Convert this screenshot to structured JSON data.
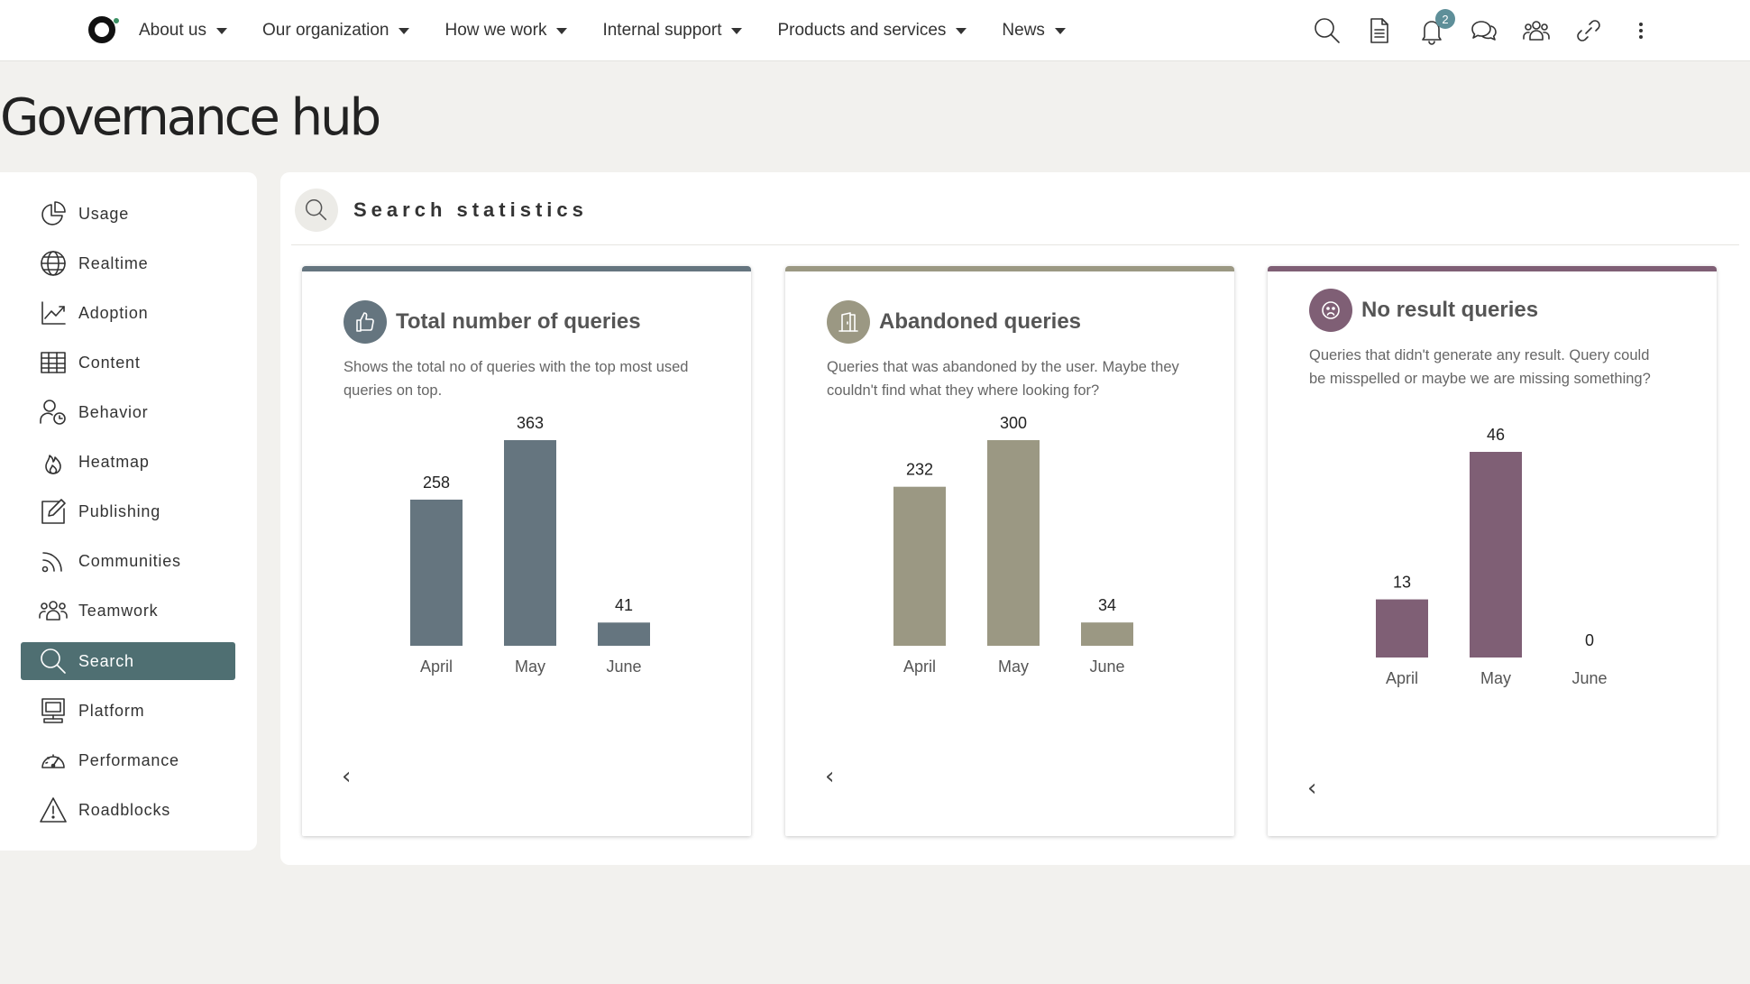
{
  "nav": {
    "items": [
      {
        "label": "About us"
      },
      {
        "label": "Our organization"
      },
      {
        "label": "How we work"
      },
      {
        "label": "Internal support"
      },
      {
        "label": "Products and services"
      },
      {
        "label": "News"
      }
    ],
    "notification_count": "2",
    "icons": [
      "search-icon",
      "document-icon",
      "bell-icon",
      "chat-icon",
      "people-icon",
      "link-icon",
      "more-vertical-icon"
    ]
  },
  "page": {
    "title": "Governance hub"
  },
  "sidebar": {
    "items": [
      {
        "label": "Usage",
        "icon": "pie-chart-icon"
      },
      {
        "label": "Realtime",
        "icon": "globe-icon"
      },
      {
        "label": "Adoption",
        "icon": "line-chart-icon"
      },
      {
        "label": "Content",
        "icon": "table-icon"
      },
      {
        "label": "Behavior",
        "icon": "user-clock-icon"
      },
      {
        "label": "Heatmap",
        "icon": "flame-icon"
      },
      {
        "label": "Publishing",
        "icon": "edit-icon"
      },
      {
        "label": "Communities",
        "icon": "rss-icon"
      },
      {
        "label": "Teamwork",
        "icon": "team-icon"
      },
      {
        "label": "Search",
        "icon": "search-icon",
        "active": true
      },
      {
        "label": "Platform",
        "icon": "monitor-icon"
      },
      {
        "label": "Performance",
        "icon": "gauge-icon"
      },
      {
        "label": "Roadblocks",
        "icon": "warning-icon"
      }
    ],
    "active_color": "#4f6f72"
  },
  "section": {
    "title": "Search statistics"
  },
  "cards": [
    {
      "title": "Total number of queries",
      "description": "Shows the total no of queries with the top most used queries on top.",
      "color": "#65757f",
      "icon": "thumbs-up-icon"
    },
    {
      "title": "Abandoned queries",
      "description": "Queries that was abandoned by the user. Maybe they couldn't find what they where looking for?",
      "color": "#9b9883",
      "icon": "door-icon"
    },
    {
      "title": "No result queries",
      "description": "Queries that didn't generate any result. Query could be misspelled or maybe we are missing something?",
      "color": "#7f5f75",
      "icon": "sad-face-icon"
    }
  ],
  "chart_data": [
    {
      "type": "bar",
      "categories": [
        "April",
        "May",
        "June"
      ],
      "values": [
        258,
        363,
        41
      ],
      "color": "#65757f"
    },
    {
      "type": "bar",
      "categories": [
        "April",
        "May",
        "June"
      ],
      "values": [
        232,
        300,
        34
      ],
      "color": "#9b9883"
    },
    {
      "type": "bar",
      "categories": [
        "April",
        "May",
        "June"
      ],
      "values": [
        13,
        46,
        0
      ],
      "color": "#7f5f75"
    }
  ]
}
